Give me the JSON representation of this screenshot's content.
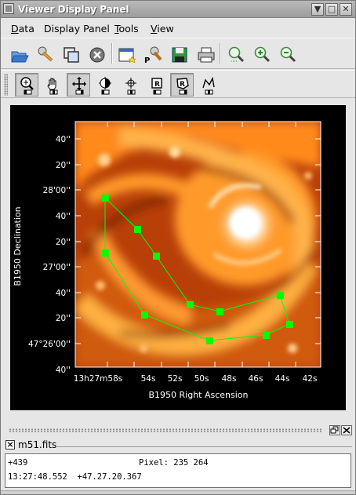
{
  "window": {
    "title": "Viewer Display Panel",
    "min_label": "▼",
    "max_label": "□",
    "close_label": "✕"
  },
  "menubar": {
    "items": [
      {
        "label": "ata",
        "mnemonic": "D"
      },
      {
        "label": "isplay Panel",
        "prefix": "D",
        "mnemonic": ""
      },
      {
        "label": "ools",
        "mnemonic": "T"
      },
      {
        "label": "iew",
        "mnemonic": "V"
      }
    ]
  },
  "toolbar1": {
    "buttons": [
      "open-folder-icon",
      "wrench-icon",
      "copy-windows-icon",
      "close-circle-icon",
      "new-window-icon",
      "print-setup-wrench-icon",
      "save-disk-icon",
      "printer-icon",
      "zoom-fit-icon",
      "zoom-in-icon",
      "zoom-out-icon"
    ],
    "print_setup_letter": "P"
  },
  "toolbar2": {
    "buttons": [
      "zoom-tool-icon",
      "pan-hand-icon",
      "move-cross-icon",
      "contrast-icon",
      "crosshair-icon",
      "rectangle-region-icon",
      "polygon-region-icon",
      "polyline-icon"
    ],
    "pressed": [
      0,
      2,
      6
    ]
  },
  "image": {
    "y_ticks": [
      "40''",
      "20''",
      "28'00''",
      "40''",
      "20''",
      "27'00''",
      "40''",
      "20''",
      "47°26'00''",
      "40''"
    ],
    "x_ticks": [
      "13h27m58s",
      "54s",
      "52s",
      "50s",
      "48s",
      "46s",
      "44s",
      "42s"
    ],
    "x_label": "B1950 Right Ascension",
    "y_label": "B1950 Declination",
    "polygon_color": "#00ff00",
    "axis_color": "#ffffff"
  },
  "panel": {
    "tab_label": "m51.fits",
    "intensity": "+439",
    "pixel_label": "Pixel:",
    "pixel_value": "235 264",
    "ra": "13:27:48.552",
    "dec": "+47.27.20.367"
  }
}
